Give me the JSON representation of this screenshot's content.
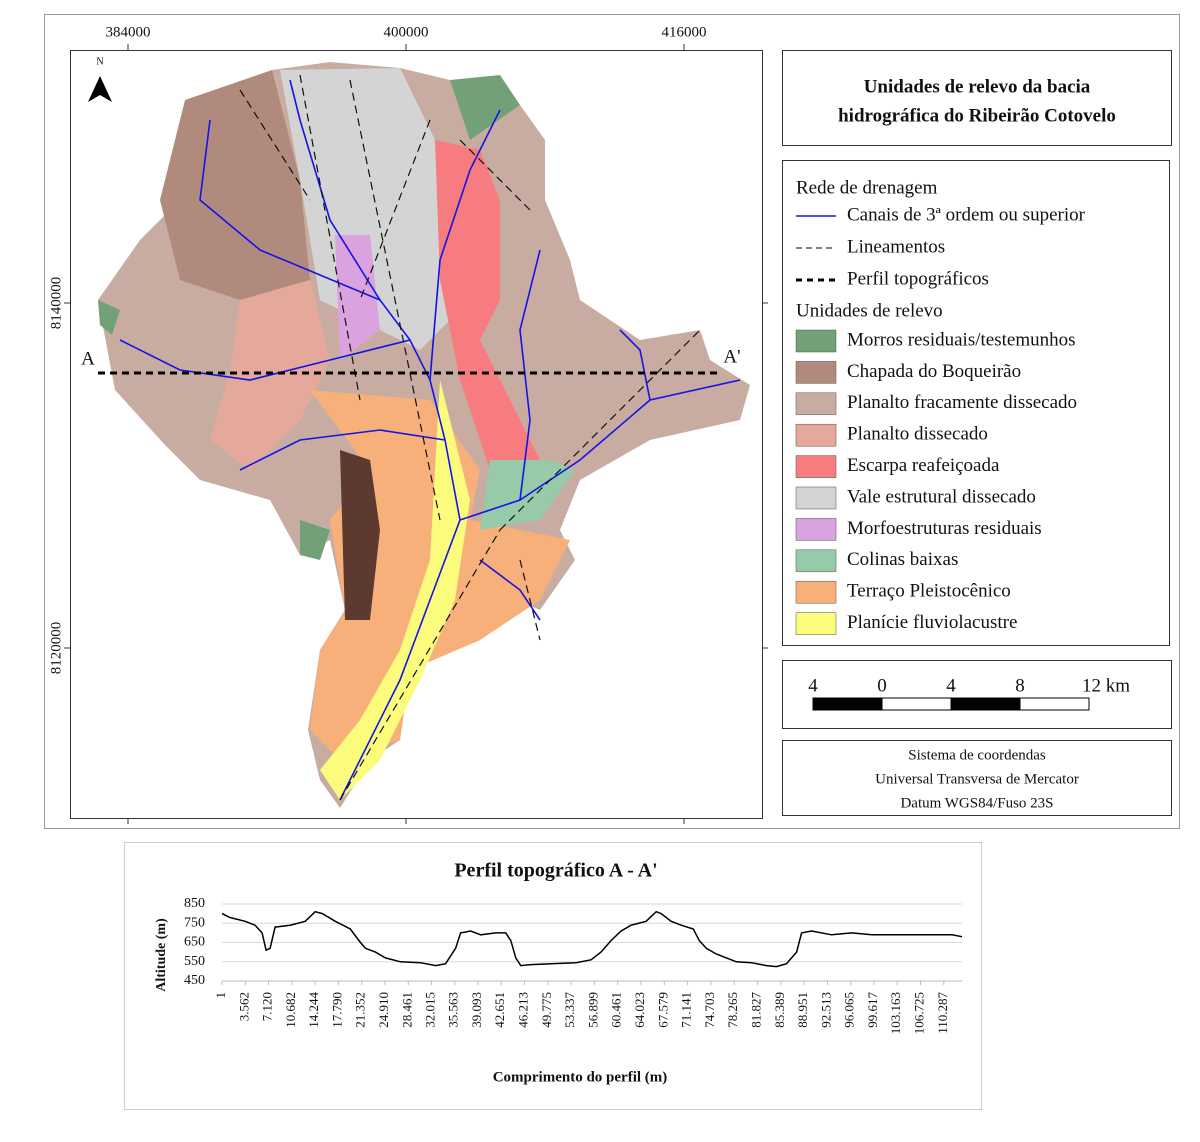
{
  "map": {
    "north": "N",
    "coordinates": {
      "top": [
        "384000",
        "400000",
        "416000"
      ],
      "left": [
        "8140000",
        "8120000"
      ]
    },
    "profile_labels": [
      "A",
      "A'"
    ],
    "legend": {
      "title": [
        "Unidades de relevo da bacia",
        "hidrográfica do Ribeirão Cotovelo"
      ],
      "drainage_heading": "Rede de drenagem",
      "drainage_items": [
        "Canais de 3ª ordem ou superior",
        "Lineamentos",
        "Perfil topográficos"
      ],
      "relief_heading": "Unidades de relevo",
      "relief_items": [
        {
          "name": "Morros residuais/testemunhos",
          "color": "#72a177"
        },
        {
          "name": "Chapada do Boqueirão",
          "color": "#b08a7c"
        },
        {
          "name": "Planalto fracamente dissecado",
          "color": "#c9aca1"
        },
        {
          "name": "Planalto dissecado",
          "color": "#e4a99b"
        },
        {
          "name": "Escarpa reafeiçoada",
          "color": "#f67c7f"
        },
        {
          "name": "Vale estrutural dissecado",
          "color": "#d4d4d4"
        },
        {
          "name": "Morfoestruturas residuais",
          "color": "#dba2e0"
        },
        {
          "name": "Colinas baixas",
          "color": "#96caa8"
        },
        {
          "name": "Terraço Pleistocênico",
          "color": "#f8b07b"
        },
        {
          "name": "Planície fluviolacustre",
          "color": "#fbfb7c"
        }
      ]
    },
    "scale_bar": [
      "4",
      "0",
      "4",
      "8",
      "12 km"
    ],
    "coordinate_system": [
      "Sistema de coordendas",
      "Universal Transversa de Mercator",
      "Datum WGS84/Fuso 23S"
    ]
  },
  "chart_data": {
    "type": "line",
    "title": "Perfil topográfico A - A'",
    "x_label": "Comprimento  do perfil (m)",
    "y_label": "Altitude (m)",
    "color": "#000000",
    "grid": true,
    "x": [
      1,
      1226,
      3524,
      5056,
      6128,
      6742,
      7355,
      8121,
      10418,
      12716,
      14248,
      15320,
      17312,
      19610,
      21142,
      21907,
      23439,
      24971,
      27269,
      30333,
      32632,
      34164,
      35696,
      36462,
      37994,
      39526,
      41824,
      43356,
      44122,
      44888,
      45654,
      47186,
      50250,
      54080,
      56378,
      57910,
      59442,
      60974,
      62506,
      64804,
      66336,
      67102,
      68634,
      70166,
      72004,
      72924,
      73996,
      75528,
      77060,
      78592,
      80890,
      83188,
      84720,
      86252,
      87784,
      88550,
      90082,
      93146,
      96210,
      99274,
      102338,
      105402,
      108466,
      111530,
      113062
    ],
    "values": [
      800,
      780,
      760,
      740,
      700,
      610,
      620,
      730,
      740,
      760,
      810,
      800,
      760,
      720,
      650,
      620,
      600,
      570,
      550,
      545,
      530,
      540,
      620,
      700,
      710,
      690,
      700,
      700,
      660,
      570,
      530,
      535,
      540,
      545,
      560,
      600,
      660,
      710,
      740,
      760,
      810,
      800,
      760,
      740,
      720,
      660,
      620,
      590,
      570,
      550,
      545,
      530,
      525,
      540,
      600,
      700,
      710,
      690,
      700,
      690,
      690,
      690,
      690,
      690,
      680
    ],
    "xlim": [
      1,
      113062
    ],
    "ylim": [
      450,
      850
    ],
    "yticks": [
      450,
      550,
      650,
      750,
      850
    ],
    "xticks": [
      1,
      {
        "value": 3562,
        "label": "3.562"
      },
      {
        "value": 7120,
        "label": "7.120"
      },
      {
        "value": 10682,
        "label": "10.682"
      },
      {
        "value": 14244,
        "label": "14.244"
      },
      {
        "value": 17790,
        "label": "17.790"
      },
      {
        "value": 21352,
        "label": "21.352"
      },
      {
        "value": 24910,
        "label": "24.910"
      },
      {
        "value": 28461,
        "label": "28.461"
      },
      {
        "value": 32015,
        "label": "32.015"
      },
      {
        "value": 35563,
        "label": "35.563"
      },
      {
        "value": 39093,
        "label": "39.093"
      },
      {
        "value": 42651,
        "label": "42.651"
      },
      {
        "value": 46213,
        "label": "46.213"
      },
      {
        "value": 49775,
        "label": "49.775"
      },
      {
        "value": 53337,
        "label": "53.337"
      },
      {
        "value": 56899,
        "label": "56.899"
      },
      {
        "value": 60461,
        "label": "60.461"
      },
      {
        "value": 64023,
        "label": "64.023"
      },
      {
        "value": 67579,
        "label": "67.579"
      },
      {
        "value": 71141,
        "label": "71.141"
      },
      {
        "value": 74703,
        "label": "74.703"
      },
      {
        "value": 78265,
        "label": "78.265"
      },
      {
        "value": 81827,
        "label": "81.827"
      },
      {
        "value": 85389,
        "label": "85.389"
      },
      {
        "value": 88951,
        "label": "88.951"
      },
      {
        "value": 92513,
        "label": "92.513"
      },
      {
        "value": 96065,
        "label": "96.065"
      },
      {
        "value": 99617,
        "label": "99.617"
      },
      {
        "value": 103163,
        "label": "103.163"
      },
      {
        "value": 106725,
        "label": "106.725"
      },
      {
        "value": 110287,
        "label": "110.287"
      }
    ]
  }
}
